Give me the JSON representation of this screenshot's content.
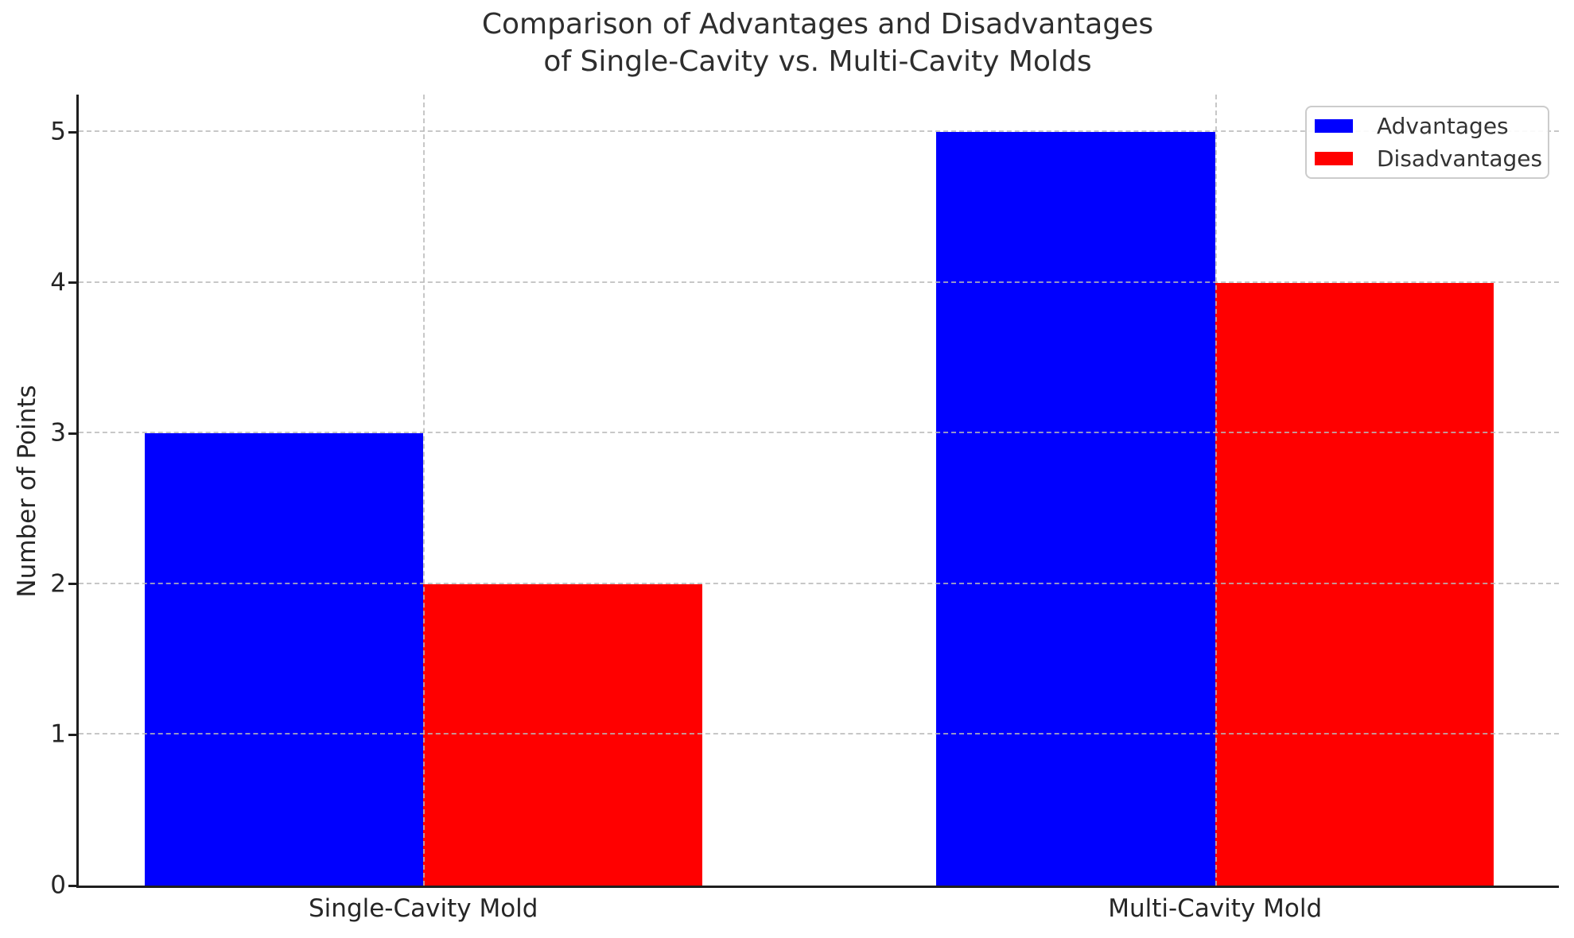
{
  "chart_data": {
    "type": "bar",
    "title": "Comparison of Advantages and Disadvantages\nof Single-Cavity vs. Multi-Cavity Molds",
    "categories": [
      "Single-Cavity Mold",
      "Multi-Cavity Mold"
    ],
    "series": [
      {
        "name": "Advantages",
        "color": "#0000ff",
        "values": [
          3,
          5
        ]
      },
      {
        "name": "Disadvantages",
        "color": "#ff0000",
        "values": [
          2,
          4
        ]
      }
    ],
    "xlabel": "",
    "ylabel": "Number of Points",
    "yticks": [
      0,
      1,
      2,
      3,
      4,
      5
    ],
    "ylim": [
      0,
      5.25
    ],
    "grid": "dashed",
    "grid_color": "#b9b9b9",
    "legend_position": "upper right",
    "legend_entries": [
      "Advantages",
      "Disadvantages"
    ]
  }
}
